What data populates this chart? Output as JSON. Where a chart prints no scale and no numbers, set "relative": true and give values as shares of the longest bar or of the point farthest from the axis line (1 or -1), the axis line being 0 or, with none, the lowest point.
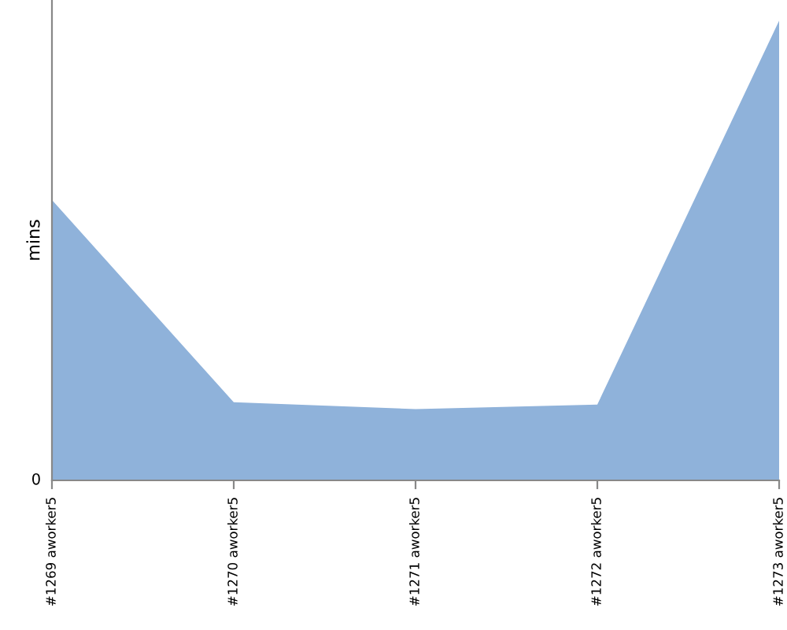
{
  "chart_data": {
    "type": "area",
    "ylabel": "mins",
    "relative": true,
    "categories": [
      "#1269 aworker5",
      "#1270 aworker5",
      "#1271 aworker5",
      "#1272 aworker5",
      "#1273 aworker5"
    ],
    "series": [
      {
        "color": "#8fb2da",
        "values": [
          0.61,
          0.17,
          0.155,
          0.165,
          1
        ]
      }
    ],
    "annotations": [
      "0"
    ],
    "grid": false,
    "legend": false
  }
}
